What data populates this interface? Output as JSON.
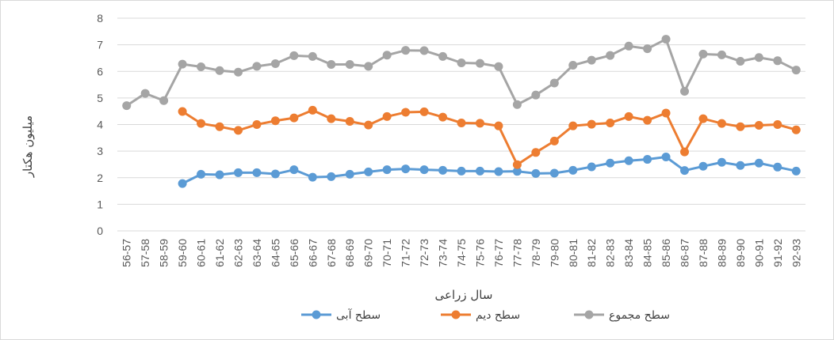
{
  "chart_data": {
    "type": "line",
    "title": "",
    "xlabel": "سال زراعی",
    "ylabel": "میلیون هکتار",
    "ylim": [
      0,
      8
    ],
    "yticks": [
      0,
      1,
      2,
      3,
      4,
      5,
      6,
      7,
      8
    ],
    "grid": true,
    "legend_position": "bottom",
    "categories": [
      "56-57",
      "57-58",
      "58-59",
      "59-60",
      "60-61",
      "61-62",
      "62-63",
      "63-64",
      "64-65",
      "65-66",
      "66-67",
      "67-68",
      "68-69",
      "69-70",
      "70-71",
      "71-72",
      "72-73",
      "73-74",
      "74-75",
      "75-76",
      "76-77",
      "77-78",
      "78-79",
      "79-80",
      "80-81",
      "81-82",
      "82-83",
      "83-84",
      "84-85",
      "85-86",
      "86-87",
      "87-88",
      "88-89",
      "89-90",
      "90-91",
      "91-92",
      "92-93"
    ],
    "series": [
      {
        "name": "سطح آبی",
        "color": "#5b9bd5",
        "values": [
          null,
          null,
          null,
          1.78,
          2.13,
          2.11,
          2.19,
          2.19,
          2.14,
          2.3,
          2.02,
          2.04,
          2.13,
          2.22,
          2.3,
          2.33,
          2.3,
          2.28,
          2.25,
          2.25,
          2.23,
          2.24,
          2.16,
          2.17,
          2.28,
          2.41,
          2.55,
          2.64,
          2.69,
          2.78,
          2.27,
          2.43,
          2.58,
          2.46,
          2.55,
          2.4,
          2.25
        ]
      },
      {
        "name": "سطح دیم",
        "color": "#ed7d31",
        "values": [
          null,
          null,
          null,
          4.49,
          4.04,
          3.92,
          3.78,
          4.0,
          4.14,
          4.25,
          4.54,
          4.22,
          4.12,
          3.98,
          4.3,
          4.46,
          4.48,
          4.28,
          4.06,
          4.05,
          3.95,
          2.49,
          2.95,
          3.38,
          3.95,
          4.01,
          4.06,
          4.3,
          4.16,
          4.43,
          2.97,
          4.22,
          4.04,
          3.92,
          3.97,
          4.0,
          3.8
        ]
      },
      {
        "name": "سطح مجموع",
        "color": "#a5a5a5",
        "values": [
          4.71,
          5.17,
          4.9,
          6.27,
          6.17,
          6.03,
          5.97,
          6.19,
          6.29,
          6.59,
          6.56,
          6.26,
          6.26,
          6.19,
          6.61,
          6.79,
          6.78,
          6.56,
          6.32,
          6.3,
          6.18,
          4.75,
          5.11,
          5.56,
          6.23,
          6.42,
          6.6,
          6.95,
          6.85,
          7.21,
          5.25,
          6.65,
          6.62,
          6.38,
          6.52,
          6.4,
          6.05
        ]
      }
    ]
  }
}
